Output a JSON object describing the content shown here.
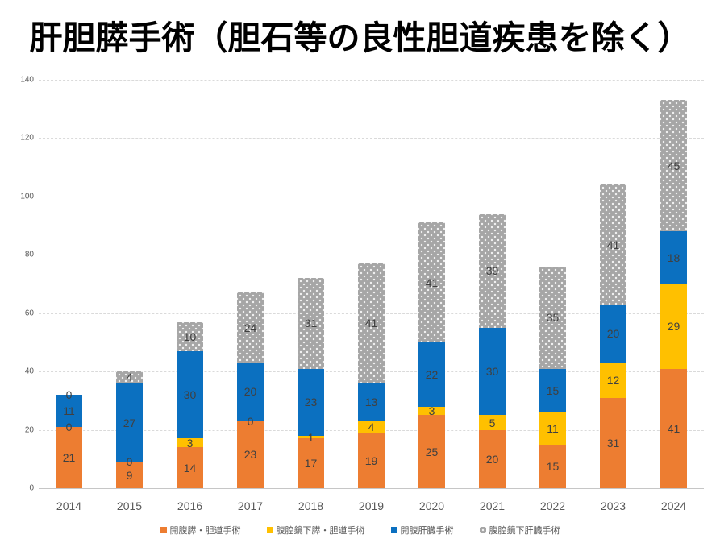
{
  "title": "肝胆膵手術（胆石等の良性胆道疾患を除く）",
  "chart_data": {
    "type": "bar",
    "stacked": true,
    "title": "肝胆膵手術（胆石等の良性胆道疾患を除く）",
    "categories": [
      "2014",
      "2015",
      "2016",
      "2017",
      "2018",
      "2019",
      "2020",
      "2021",
      "2022",
      "2023",
      "2024"
    ],
    "series": [
      {
        "name": "開腹膵・胆道手術",
        "color": "#ED7D31",
        "pattern": "solid",
        "values": [
          21,
          9,
          14,
          23,
          17,
          19,
          25,
          20,
          15,
          31,
          41
        ]
      },
      {
        "name": "腹腔鏡下膵・胆道手術",
        "color": "#FFC000",
        "pattern": "solid",
        "values": [
          0,
          0,
          3,
          0,
          1,
          4,
          3,
          5,
          11,
          12,
          29
        ]
      },
      {
        "name": "開腹肝臓手術",
        "color": "#0B70C0",
        "pattern": "solid",
        "values": [
          11,
          27,
          30,
          20,
          23,
          13,
          22,
          30,
          15,
          20,
          18
        ]
      },
      {
        "name": "腹腔鏡下肝臓手術",
        "color": "#A6A6A6",
        "pattern": "dotted",
        "values": [
          0,
          4,
          10,
          24,
          31,
          41,
          41,
          39,
          35,
          41,
          45
        ]
      }
    ],
    "totals": [
      32,
      40,
      57,
      67,
      72,
      77,
      91,
      94,
      76,
      104,
      133
    ],
    "xlabel": "",
    "ylabel": "",
    "ylim": [
      0,
      140
    ],
    "yticks": [
      0,
      20,
      40,
      60,
      80,
      100,
      120,
      140
    ],
    "grid": true,
    "data_labels": true,
    "data_label_color": "#404040",
    "axis_text_color": "#595959",
    "legend_position": "bottom"
  }
}
